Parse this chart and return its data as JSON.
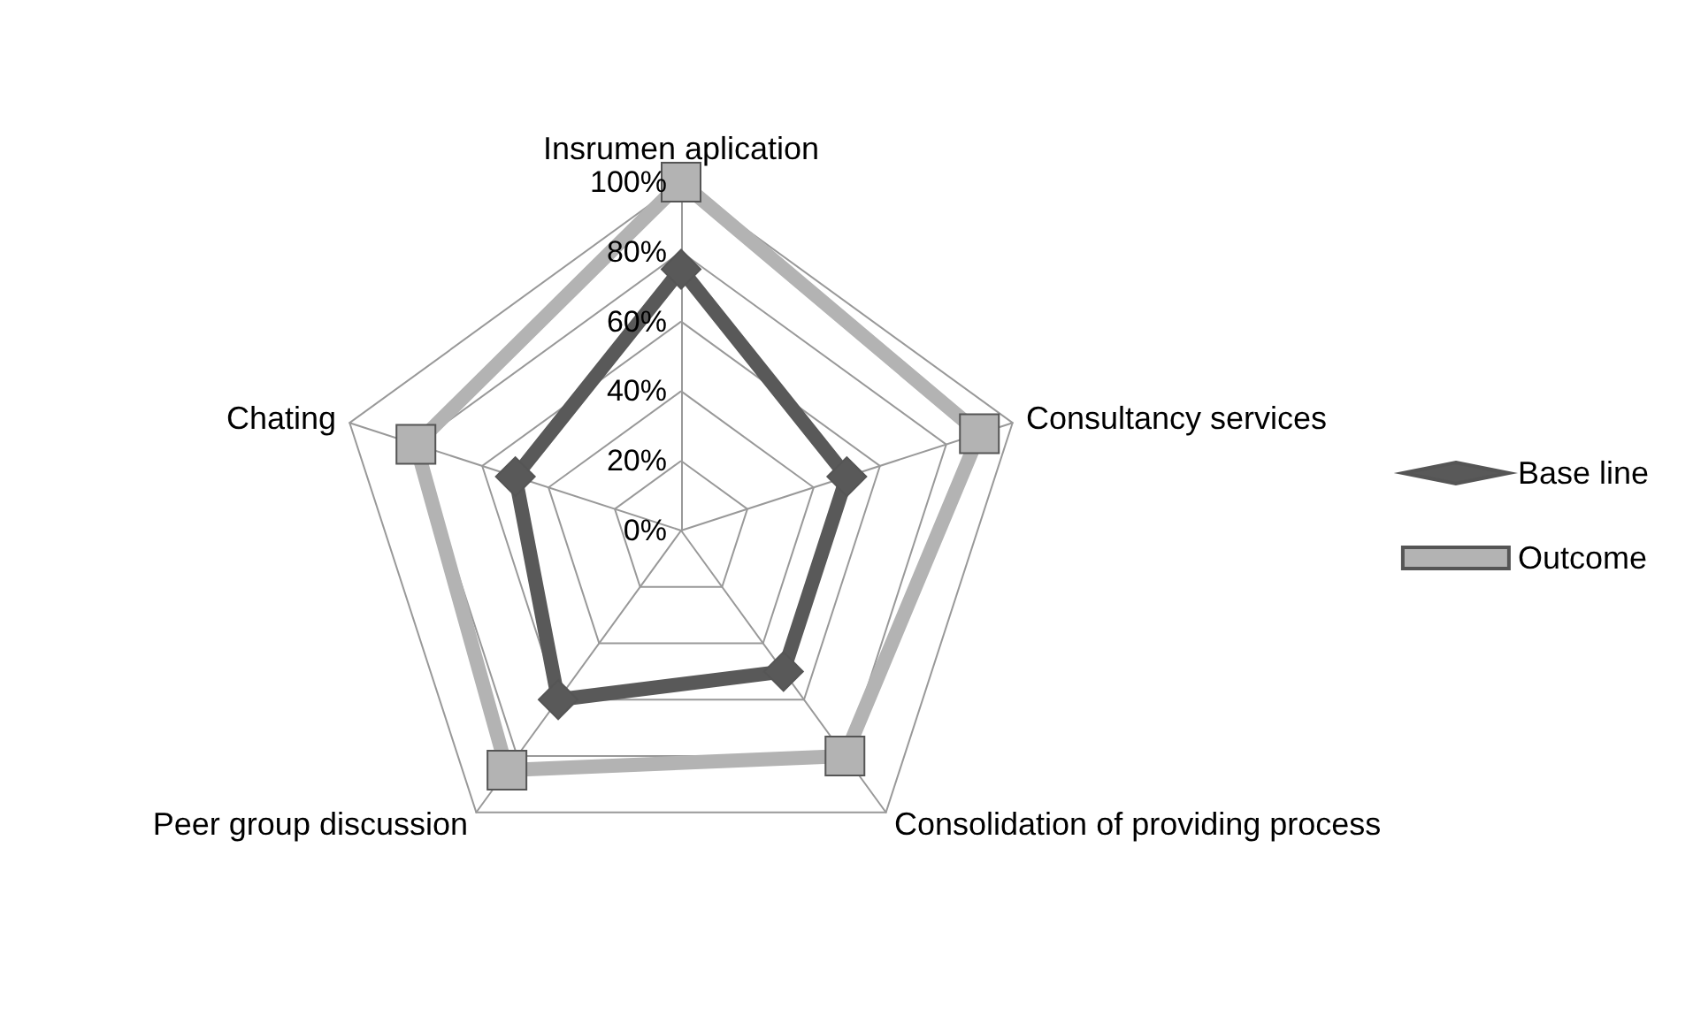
{
  "chart_data": {
    "type": "radar",
    "categories": [
      "Insrumen aplication",
      "Consultancy services",
      "Consolidation of providing process",
      "Peer group discussion",
      "Chating"
    ],
    "series": [
      {
        "name": "Base line",
        "color": "#595959",
        "marker": "diamond",
        "values": [
          75,
          50,
          50,
          60,
          50
        ]
      },
      {
        "name": "Outcome",
        "color": "#b3b3b3",
        "marker": "square",
        "values": [
          100,
          90,
          80,
          85,
          80
        ]
      }
    ],
    "ylim": [
      0,
      100
    ],
    "yticks": [
      {
        "value": 0,
        "label": "0%"
      },
      {
        "value": 20,
        "label": "20%"
      },
      {
        "value": 40,
        "label": "40%"
      },
      {
        "value": 60,
        "label": "60%"
      },
      {
        "value": 80,
        "label": "80%"
      },
      {
        "value": 100,
        "label": "100%"
      }
    ],
    "grid": true,
    "legend": "right"
  }
}
